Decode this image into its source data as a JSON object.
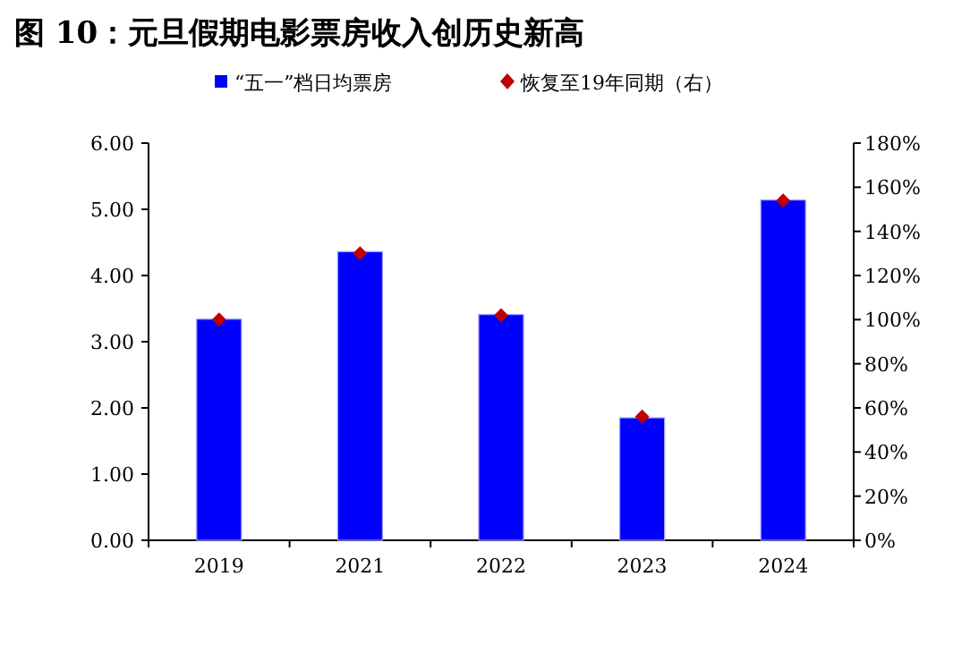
{
  "chart_data": {
    "type": "bar",
    "title": "图 10：元旦假期电影票房收入创历史新高",
    "categories": [
      "2019",
      "2021",
      "2022",
      "2023",
      "2024"
    ],
    "series": [
      {
        "name": "“五一”档日均票房",
        "color": "#0000ff",
        "values": [
          3.34,
          4.36,
          3.41,
          1.85,
          5.14
        ]
      },
      {
        "name": "恢复至19年同期（右）",
        "type": "scatter",
        "axis": "y2",
        "marker": "diamond",
        "color": "#c00000",
        "values": [
          100,
          130,
          102,
          56,
          154
        ]
      }
    ],
    "ylim": [
      0,
      6
    ],
    "yticks": [
      {
        "value": 0,
        "label": "0.00"
      },
      {
        "value": 1,
        "label": "1.00"
      },
      {
        "value": 2,
        "label": "2.00"
      },
      {
        "value": 3,
        "label": "3.00"
      },
      {
        "value": 4,
        "label": "4.00"
      },
      {
        "value": 5,
        "label": "5.00"
      },
      {
        "value": 6,
        "label": "6.00"
      }
    ],
    "y2lim": [
      0,
      180
    ],
    "y2ticks": [
      {
        "value": 0,
        "label": "0%"
      },
      {
        "value": 20,
        "label": "20%"
      },
      {
        "value": 40,
        "label": "40%"
      },
      {
        "value": 60,
        "label": "60%"
      },
      {
        "value": 80,
        "label": "80%"
      },
      {
        "value": 100,
        "label": "100%"
      },
      {
        "value": 120,
        "label": "120%"
      },
      {
        "value": 140,
        "label": "140%"
      },
      {
        "value": 160,
        "label": "160%"
      },
      {
        "value": 180,
        "label": "180%"
      }
    ],
    "legend": "top",
    "grid": false
  }
}
